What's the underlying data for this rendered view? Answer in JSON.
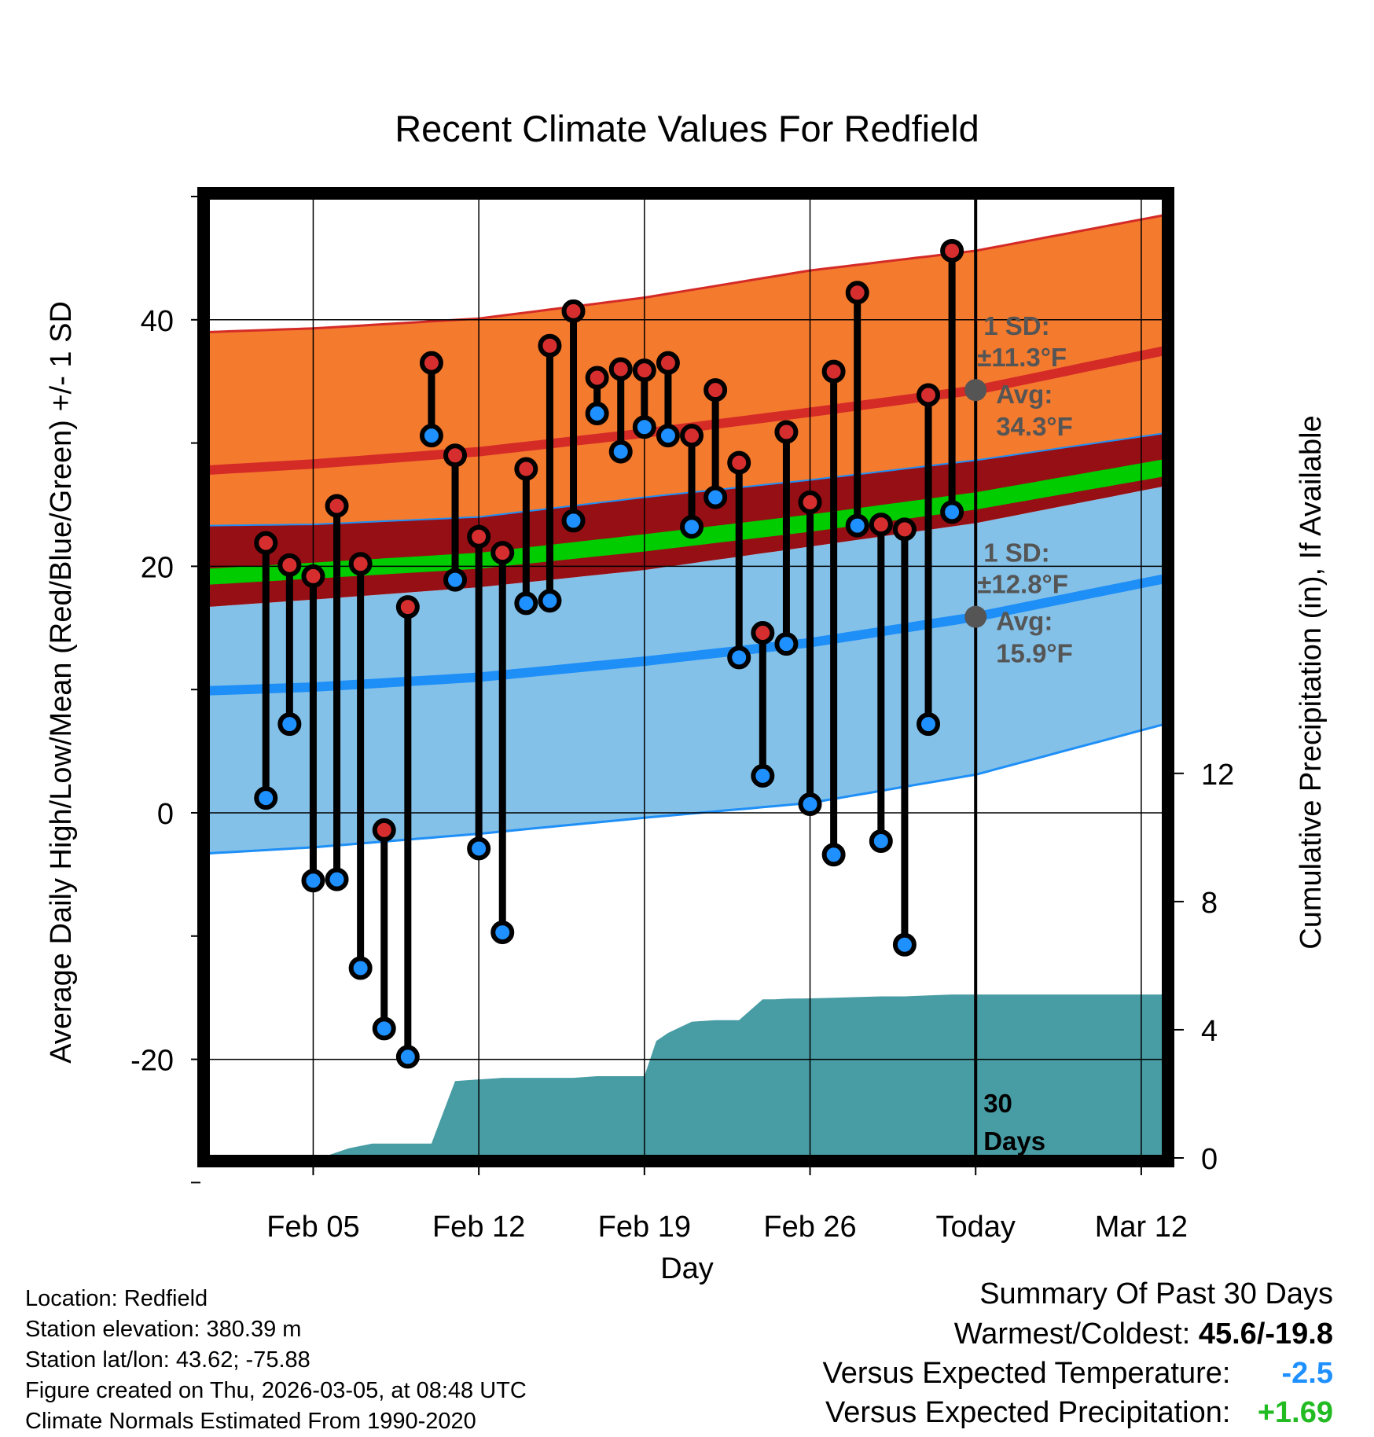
{
  "chart_data": {
    "type": "line",
    "title": "Recent Climate Values For Redfield",
    "xlabel": "Day",
    "ylabel_left": "Average Daily High/Low/Mean (Red/Blue/Green) +/- 1 SD",
    "ylabel_right": "Cumulative Precipitation (in), If Available",
    "x_domain": [
      -1.5,
      39.0
    ],
    "y_left_domain": [
      -28.0,
      50.0
    ],
    "y_right_domain": [
      0,
      30
    ],
    "x_tick_labels": [
      {
        "day": 3,
        "label": "Feb 05"
      },
      {
        "day": 10,
        "label": "Feb 12"
      },
      {
        "day": 17,
        "label": "Feb 19"
      },
      {
        "day": 24,
        "label": "Feb 26"
      },
      {
        "day": 31,
        "label": "Today"
      },
      {
        "day": 38,
        "label": "Mar 12"
      }
    ],
    "y_left_ticks": [
      -20,
      0,
      20,
      40
    ],
    "y_left_minor_ticks": [
      -30,
      -10,
      10,
      30,
      50
    ],
    "y_right_ticks": [
      0,
      4,
      8,
      12
    ],
    "today_day": 31,
    "today_label": "30\nDays",
    "normals": {
      "days": [
        -1.5,
        3,
        10,
        17,
        24,
        31,
        39
      ],
      "high_mean": [
        27.8,
        28.3,
        29.3,
        30.8,
        32.5,
        34.3,
        37.5
      ],
      "high_upper": [
        39.0,
        39.3,
        40.1,
        41.8,
        44.0,
        45.6,
        48.5
      ],
      "high_lower": [
        23.3,
        23.4,
        24.0,
        25.6,
        27.0,
        28.6,
        30.8
      ],
      "low_mean": [
        9.9,
        10.2,
        11.0,
        12.3,
        13.8,
        15.9,
        19.0
      ],
      "low_upper": [
        16.7,
        17.3,
        18.3,
        19.7,
        21.6,
        23.5,
        26.5
      ],
      "low_lower": [
        -3.3,
        -2.8,
        -1.7,
        -0.4,
        0.8,
        3.1,
        7.2
      ],
      "mean_upper": [
        19.8,
        20.3,
        21.1,
        22.6,
        24.2,
        26.0,
        28.7
      ],
      "mean_lower": [
        18.5,
        19.0,
        19.8,
        21.2,
        22.8,
        24.6,
        27.3
      ]
    },
    "daily_series": {
      "days": [
        1,
        2,
        3,
        4,
        5,
        6,
        7,
        8,
        9,
        10,
        11,
        12,
        13,
        14,
        15,
        16,
        17,
        18,
        19,
        20,
        21,
        22,
        23,
        24,
        25,
        26,
        27,
        28,
        29,
        30
      ],
      "highs": [
        21.9,
        20.1,
        19.2,
        24.9,
        20.2,
        -1.4,
        16.7,
        36.5,
        29.0,
        22.4,
        21.1,
        27.9,
        37.9,
        40.7,
        35.3,
        36.0,
        35.9,
        36.5,
        30.6,
        34.3,
        28.4,
        14.6,
        30.9,
        25.2,
        35.8,
        42.2,
        23.4,
        23.0,
        33.9,
        45.6
      ],
      "lows": [
        1.2,
        7.2,
        -5.5,
        -5.4,
        -12.6,
        -17.5,
        -19.8,
        30.6,
        18.9,
        -2.9,
        -9.7,
        17.0,
        17.2,
        23.7,
        32.4,
        29.3,
        31.3,
        30.6,
        23.2,
        25.6,
        12.6,
        3.0,
        13.7,
        0.7,
        -3.4,
        23.3,
        -2.3,
        -10.7,
        7.2,
        24.4
      ]
    },
    "precip_cumulative": {
      "days": [
        -1.5,
        1.5,
        2.5,
        3.5,
        4.5,
        5.5,
        6.5,
        8,
        9,
        10,
        11,
        12,
        13,
        14,
        15,
        16,
        17,
        17.5,
        18,
        19,
        20,
        21,
        22,
        22.5,
        23,
        24,
        25,
        26,
        27,
        28,
        29,
        30,
        31,
        39
      ],
      "values": [
        0,
        0,
        0,
        0.05,
        0.3,
        0.45,
        0.45,
        0.45,
        2.4,
        2.45,
        2.5,
        2.5,
        2.5,
        2.5,
        2.55,
        2.55,
        2.55,
        3.65,
        3.9,
        4.25,
        4.3,
        4.3,
        4.95,
        4.95,
        4.97,
        4.98,
        5.0,
        5.02,
        5.04,
        5.04,
        5.07,
        5.1,
        5.1,
        5.1
      ]
    },
    "annotations": {
      "high_sd": "1 SD:",
      "high_sd_value": "±11.3°F",
      "high_avg": "Avg:",
      "high_avg_value": "34.3°F",
      "high_avg_marker": 34.3,
      "low_sd": "1 SD:",
      "low_sd_value": "±12.8°F",
      "low_avg": "Avg:",
      "low_avg_value": "15.9°F",
      "low_avg_marker": 15.9
    },
    "colors": {
      "high_band": "#f47a2e",
      "high_line": "#d42b27",
      "high_point": "#d62e2e",
      "low_band": "#84c1e9",
      "low_line": "#1e8ff7",
      "low_point": "#1e90ff",
      "mean_band": "#00cc00",
      "overlap": "#960f14",
      "precip": "#489ca4",
      "annotation": "#555555"
    }
  },
  "info": {
    "location": "Location: Redfield",
    "elevation": "Station elevation: 380.39 m",
    "latlon": "Station lat/lon: 43.62; -75.88",
    "created": "Figure created on Thu, 2026-03-05, at 08:48 UTC",
    "normals": "Climate Normals Estimated From 1990-2020"
  },
  "summary": {
    "title": "Summary Of Past 30 Days",
    "warmest_label": "Warmest/Coldest:",
    "warmest_value": "45.6/-19.8",
    "temp_label": "Versus Expected Temperature:",
    "temp_value": "-2.5",
    "temp_color": "#1e90ff",
    "precip_label": "Versus Expected Precipitation:",
    "precip_value": "+1.69",
    "precip_color": "#22bb22"
  }
}
